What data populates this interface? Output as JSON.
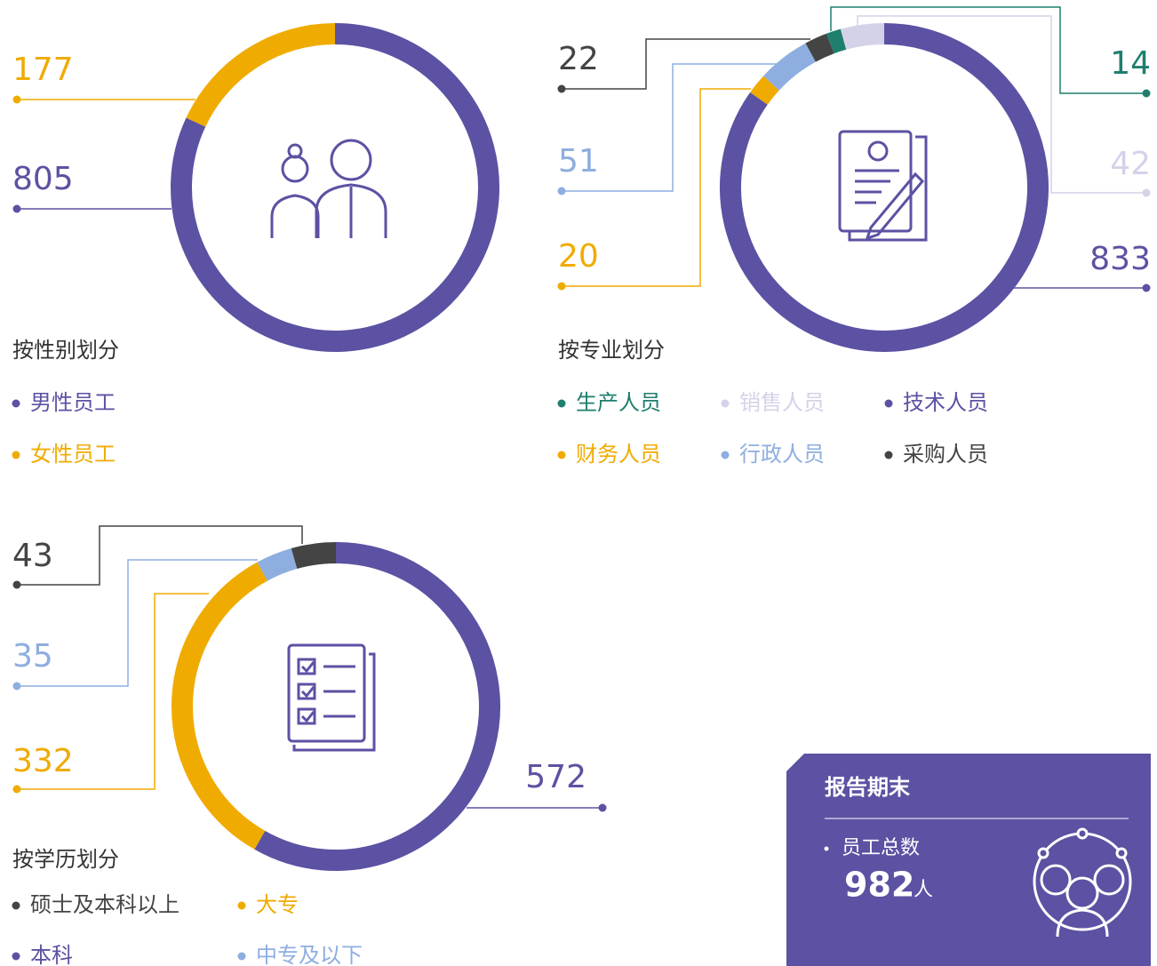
{
  "chart_data": [
    {
      "type": "pie",
      "title": "按性别划分",
      "categories": [
        "男性员工",
        "女性员工"
      ],
      "values": [
        805,
        177
      ],
      "colors": [
        "#5b52a3",
        "#f0ab00"
      ]
    },
    {
      "type": "pie",
      "title": "按专业划分",
      "categories": [
        "技术人员",
        "财务人员",
        "行政人员",
        "采购人员",
        "生产人员",
        "销售人员"
      ],
      "values": [
        833,
        20,
        51,
        22,
        14,
        42
      ],
      "colors": [
        "#5b52a3",
        "#f0ab00",
        "#8eaee0",
        "#444444",
        "#1e7f6e",
        "#d4d2e8"
      ]
    },
    {
      "type": "pie",
      "title": "按学历划分",
      "categories": [
        "本科",
        "大专",
        "中专及以下",
        "硕士及本科以上"
      ],
      "values": [
        572,
        332,
        35,
        43
      ],
      "colors": [
        "#5b52a3",
        "#f0ab00",
        "#8eaee0",
        "#444444"
      ]
    }
  ],
  "summary": {
    "title": "报告期末",
    "label": "员工总数",
    "value": 982,
    "unit": "人"
  }
}
